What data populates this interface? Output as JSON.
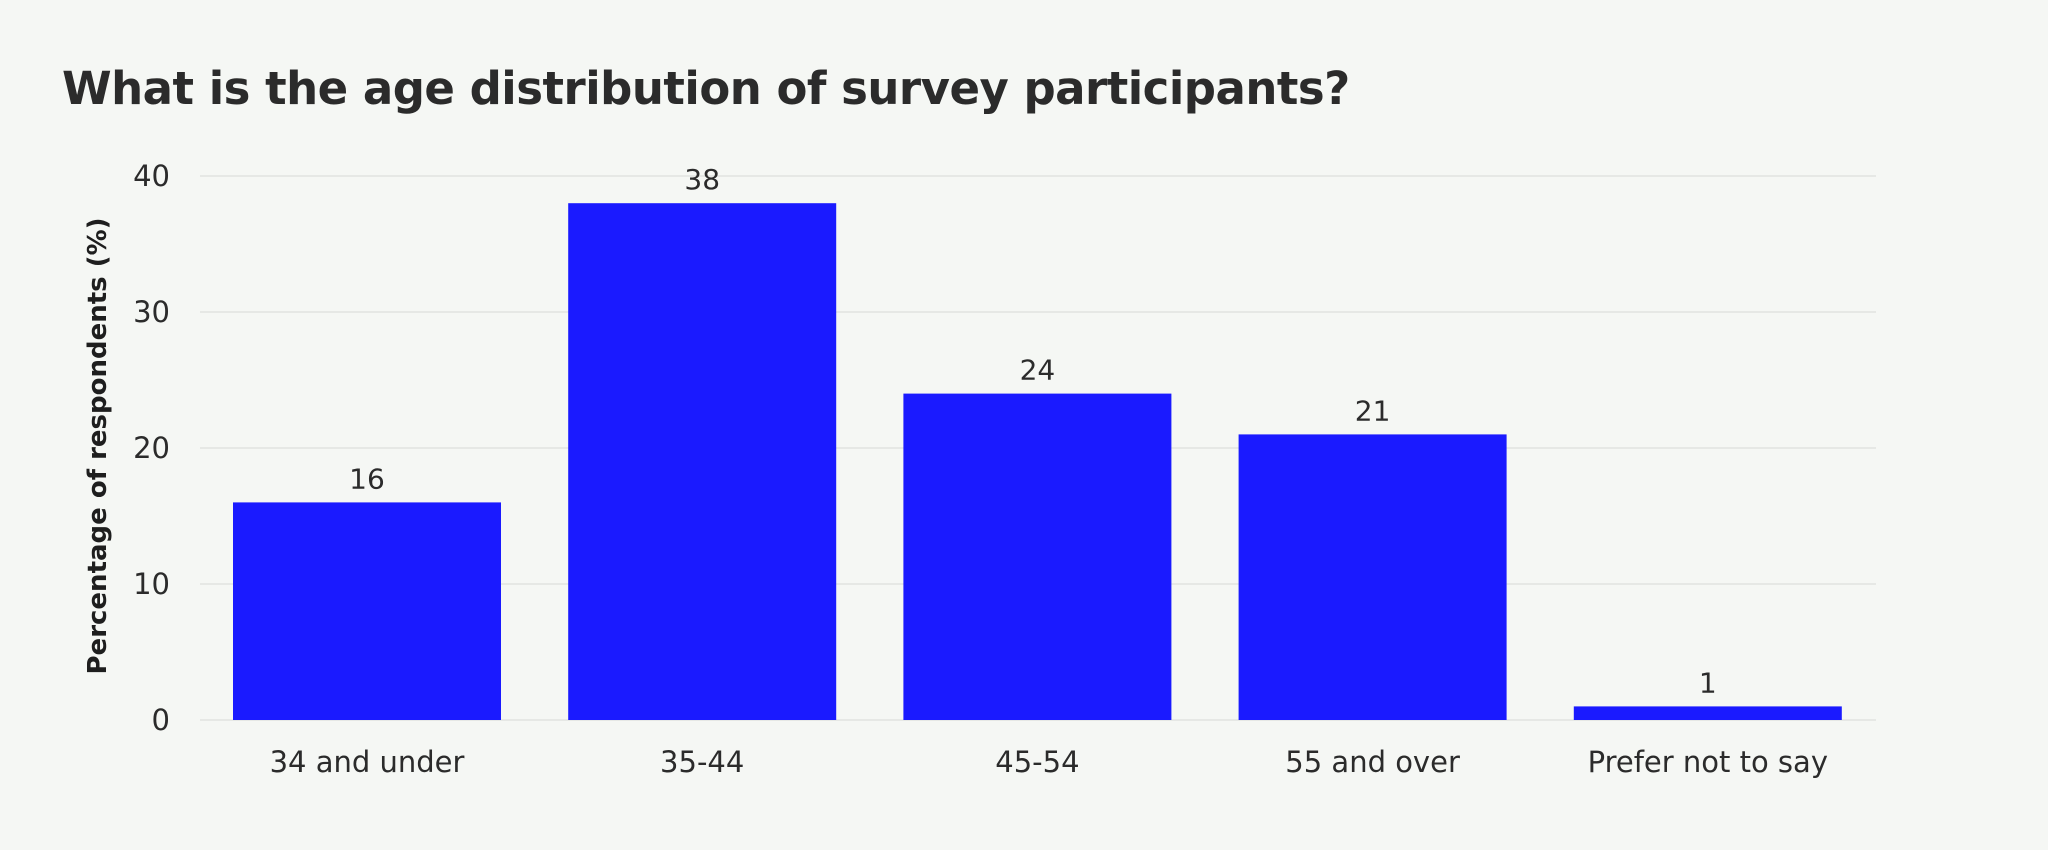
{
  "chart_data": {
    "type": "bar",
    "title": "What is the age distribution of survey participants?",
    "xlabel": "",
    "ylabel": "Percentage of respondents (%)",
    "categories": [
      "34 and under",
      "35-44",
      "45-54",
      "55 and over",
      "Prefer not to say"
    ],
    "values": [
      16,
      38,
      24,
      21,
      1
    ],
    "data_labels": [
      "16",
      "38",
      "24",
      "21",
      "1"
    ],
    "ylim": [
      0,
      40
    ],
    "yticks": [
      0,
      10,
      20,
      30,
      40
    ],
    "grid": true,
    "legend": "none",
    "colors": {
      "bar": "#1a1aff",
      "grid": "#e6e8e5",
      "text": "#2b2b2b",
      "background": "#f5f7f4"
    }
  }
}
